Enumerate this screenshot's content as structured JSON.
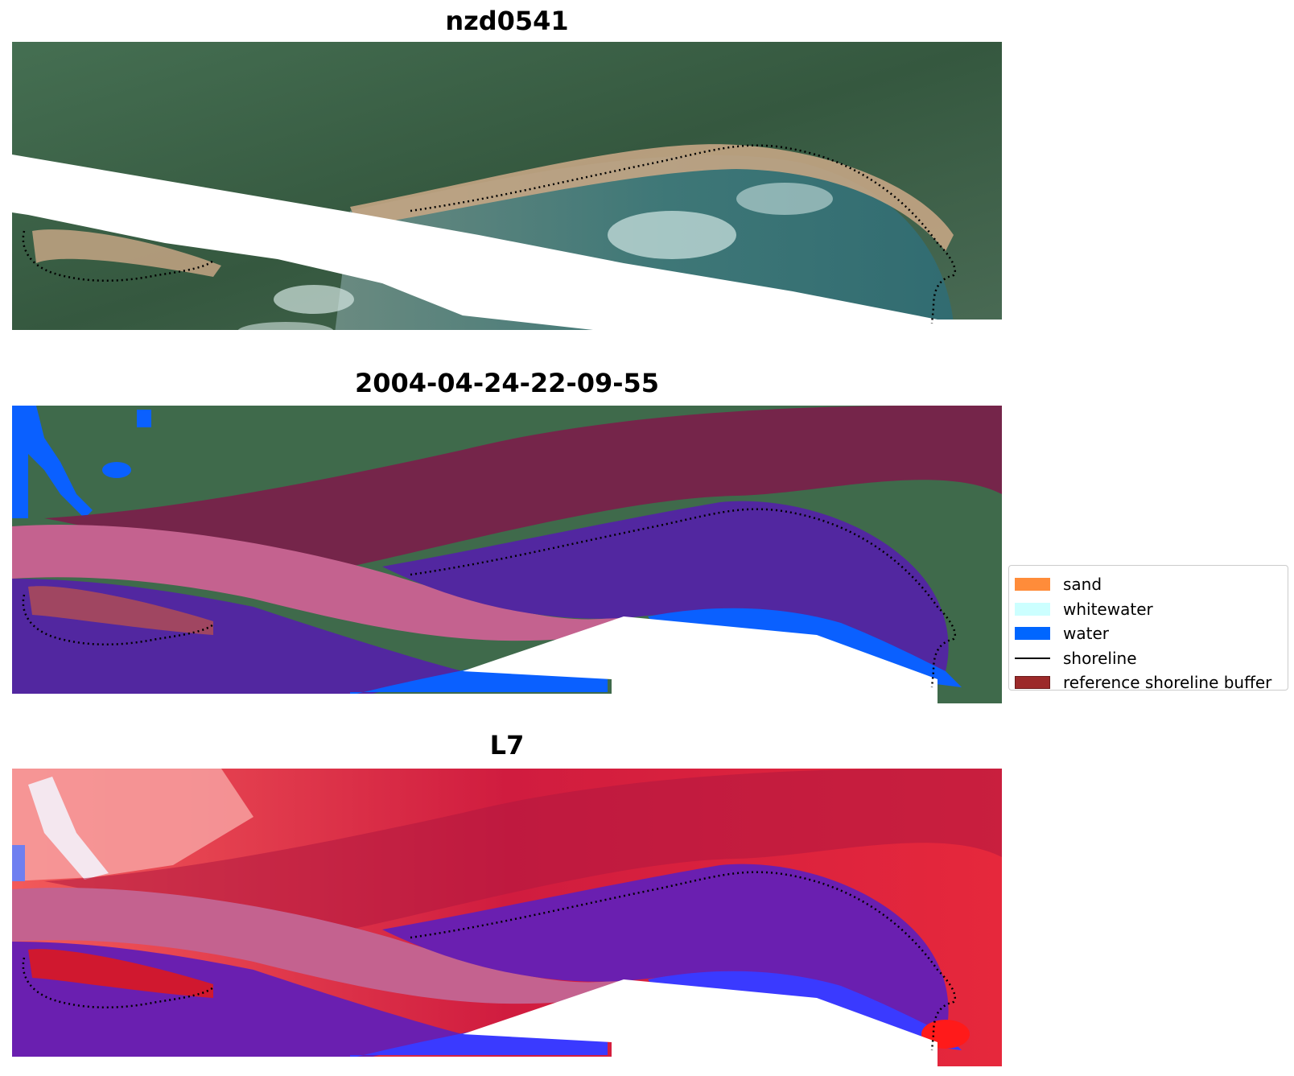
{
  "panels": {
    "rgb": {
      "title": "nzd0541"
    },
    "classified": {
      "title": "2004-04-24-22-09-55"
    },
    "index": {
      "title": "L7"
    }
  },
  "legend": {
    "items": [
      {
        "label": "sand",
        "color": "#ff8c3a",
        "kind": "patch"
      },
      {
        "label": "whitewater",
        "color": "#ccffff",
        "kind": "patch"
      },
      {
        "label": "water",
        "color": "#0066ff",
        "kind": "patch"
      },
      {
        "label": "shoreline",
        "color": "#000000",
        "kind": "line"
      },
      {
        "label": "reference shoreline buffer",
        "color": "#9c2a2a",
        "kind": "patch"
      }
    ]
  },
  "colors": {
    "forest": "#3f6a4b",
    "forest_dark": "#2f5a3c",
    "beach": "#b89a7a",
    "sea": "#3f7a78",
    "buffer_overlay": "#8a1f4a",
    "buffer_pink": "#c4628f",
    "water_class": "#5227a0",
    "index_red": "#e8203c",
    "index_purple": "#6a1fb0",
    "index_blue": "#3a3aff"
  }
}
